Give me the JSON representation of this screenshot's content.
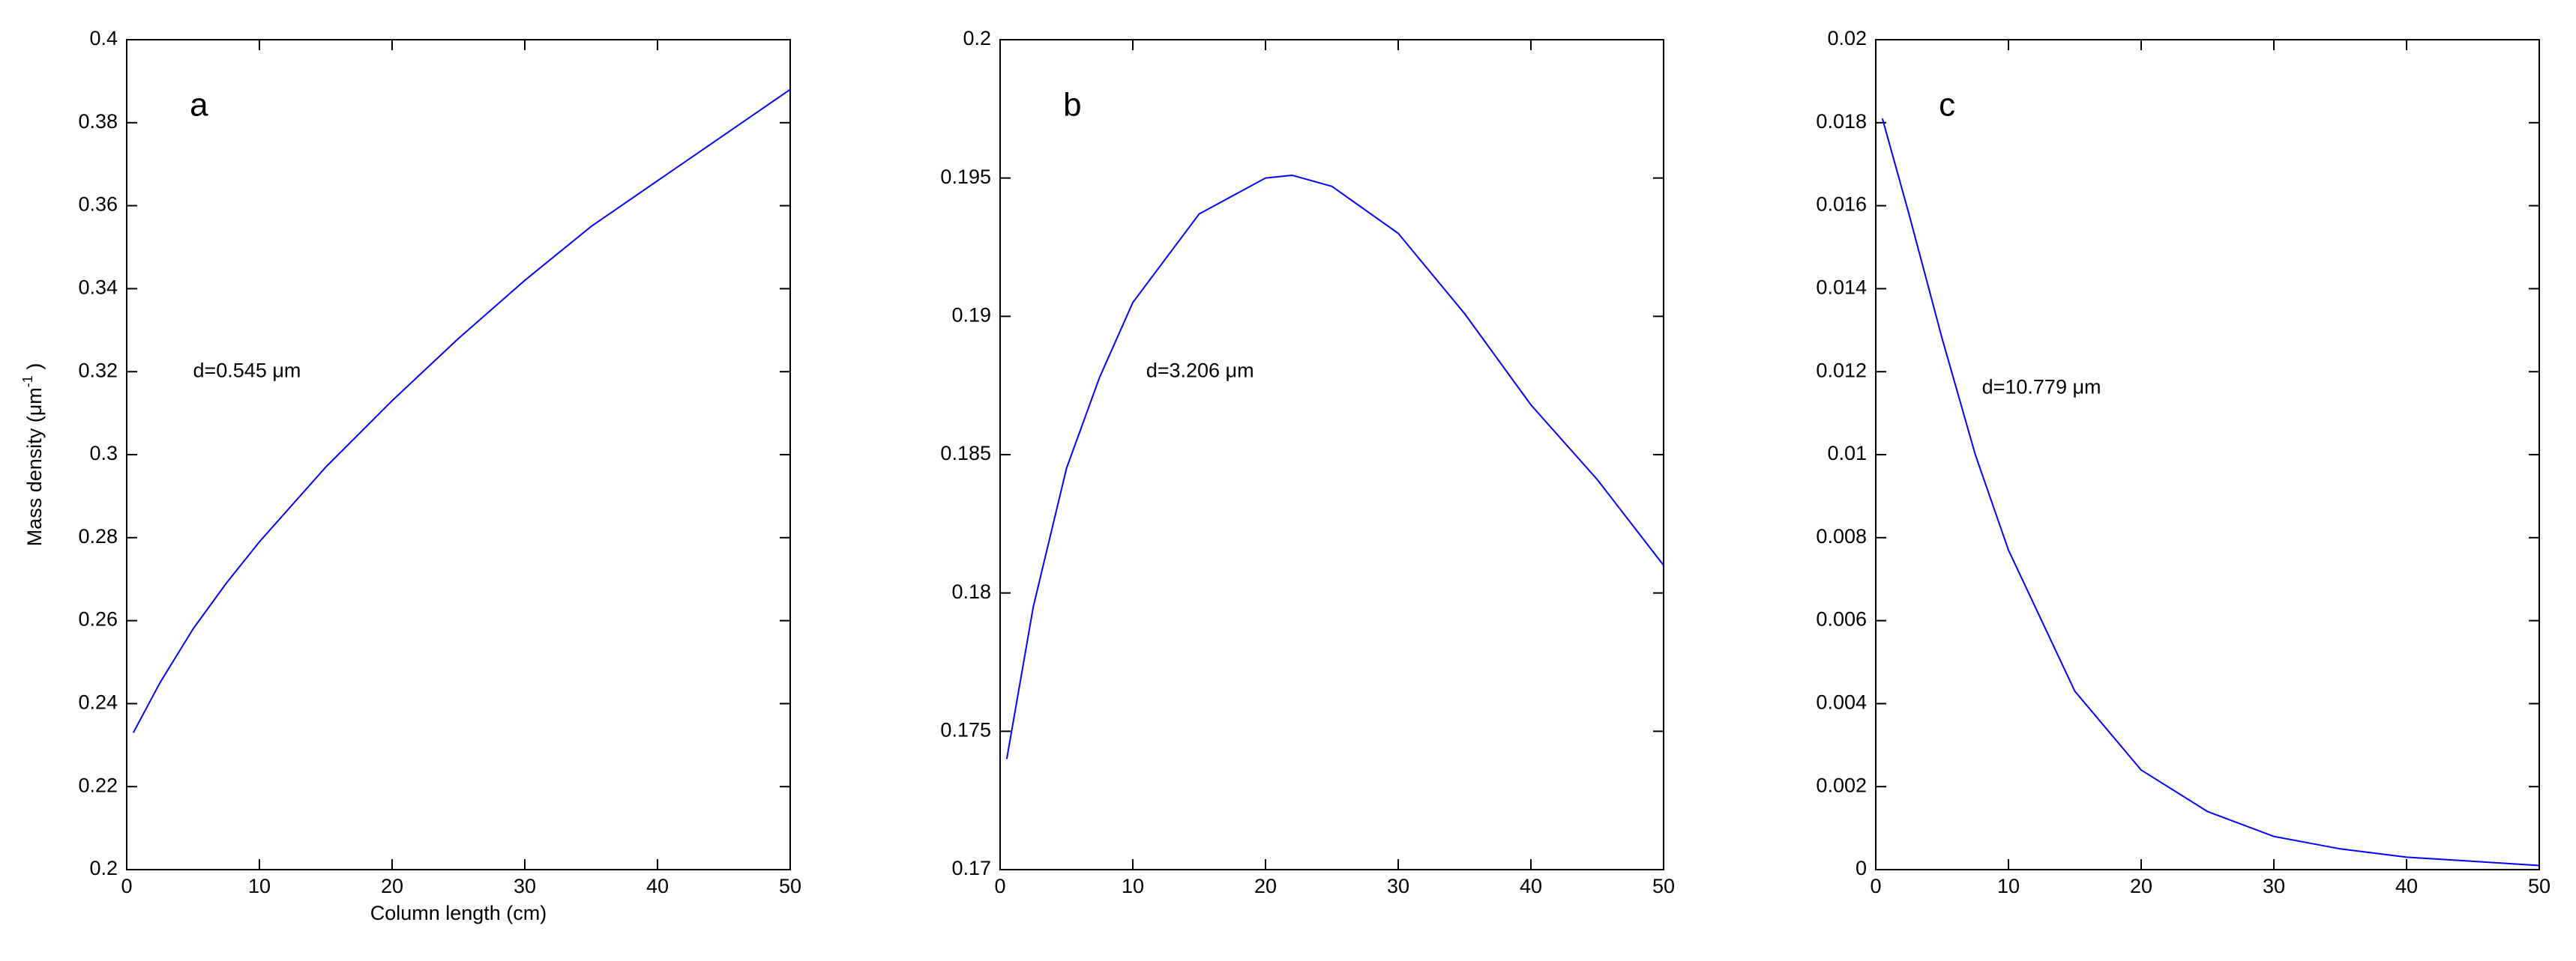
{
  "chart_data": [
    {
      "type": "line",
      "panel": "a",
      "annotation": "d=0.545 μm",
      "xlabel": "Column length (cm)",
      "ylabel": "Mass density (μm",
      "ylabel_sup": "-1",
      "ylabel_end": " )",
      "x": [
        0.5,
        2.5,
        5,
        7.5,
        10,
        15,
        20,
        25,
        30,
        35,
        40,
        45,
        50
      ],
      "series": [
        {
          "color": "#0000ff",
          "values": [
            0.233,
            0.245,
            0.258,
            0.269,
            0.279,
            0.297,
            0.313,
            0.328,
            0.342,
            0.355,
            0.366,
            0.377,
            0.388
          ]
        }
      ],
      "xlim": [
        0,
        50
      ],
      "xticks": [
        0,
        10,
        20,
        30,
        40,
        50
      ],
      "ylim": [
        0.2,
        0.4
      ],
      "yticks": [
        0.2,
        0.22,
        0.24,
        0.26,
        0.28,
        0.3,
        0.32,
        0.34,
        0.36,
        0.38,
        0.4
      ]
    },
    {
      "type": "line",
      "panel": "b",
      "annotation": "d=3.206 μm",
      "x": [
        0.5,
        2.5,
        5,
        7.5,
        10,
        15,
        20,
        22,
        25,
        30,
        35,
        40,
        45,
        50
      ],
      "series": [
        {
          "color": "#0000ff",
          "values": [
            0.174,
            0.1795,
            0.1845,
            0.1878,
            0.1905,
            0.1937,
            0.195,
            0.1951,
            0.1947,
            0.193,
            0.1901,
            0.1868,
            0.1841,
            0.181
          ]
        }
      ],
      "xlim": [
        0,
        50
      ],
      "xticks": [
        0,
        10,
        20,
        30,
        40,
        50
      ],
      "ylim": [
        0.17,
        0.2
      ],
      "yticks": [
        0.17,
        0.175,
        0.18,
        0.185,
        0.19,
        0.195,
        0.2
      ]
    },
    {
      "type": "line",
      "panel": "c",
      "annotation": "d=10.779 μm",
      "x": [
        0.5,
        2.5,
        5,
        7.5,
        10,
        15,
        20,
        25,
        30,
        35,
        40,
        45,
        50
      ],
      "series": [
        {
          "color": "#0000ff",
          "values": [
            0.0181,
            0.0158,
            0.0128,
            0.01,
            0.0077,
            0.0043,
            0.0024,
            0.0014,
            0.0008,
            0.0005,
            0.0003,
            0.0002,
            0.0001
          ]
        }
      ],
      "xlim": [
        0,
        50
      ],
      "xticks": [
        0,
        10,
        20,
        30,
        40,
        50
      ],
      "ylim": [
        0,
        0.02
      ],
      "yticks": [
        0,
        0.002,
        0.004,
        0.006,
        0.008,
        0.01,
        0.012,
        0.014,
        0.016,
        0.018,
        0.02
      ]
    }
  ]
}
